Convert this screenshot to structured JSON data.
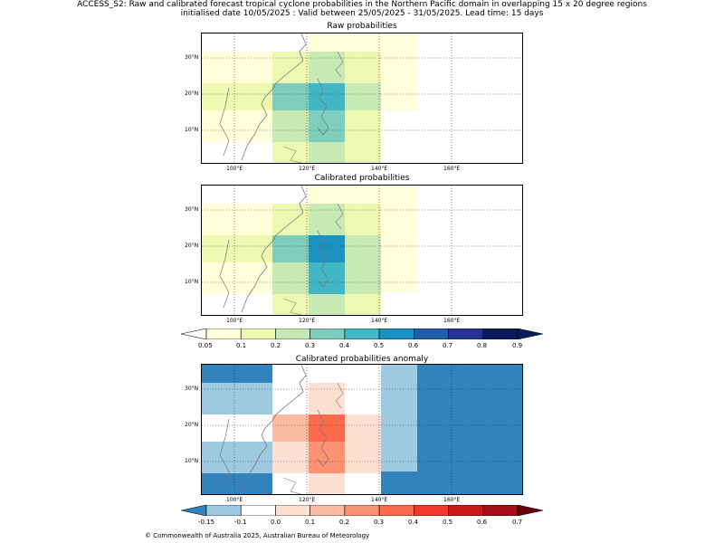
{
  "header": {
    "line1": "ACCESS_S2: Raw and calibrated forecast tropical cyclone probabilities in the Northern Pacific domain in overlapping 15 x 20 degree regions",
    "line2": "initialised date 10/05/2025 :  Valid between 25/05/2025 - 31/05/2025. Lead time: 15 days"
  },
  "panels": [
    {
      "title": "Raw probabilities",
      "id": "raw"
    },
    {
      "title": "Calibrated probabilities",
      "id": "calibrated"
    },
    {
      "title": "Calibrated probabilities anomaly",
      "id": "anomaly"
    }
  ],
  "axes": {
    "lon_labels": [
      "100°E",
      "120°E",
      "140°E",
      "160°E"
    ],
    "lat_labels": [
      "30°N",
      "20°N",
      "10°N"
    ]
  },
  "prob_colorbar": {
    "ticks": [
      "0.05",
      "0.1",
      "0.2",
      "0.3",
      "0.4",
      "0.5",
      "0.6",
      "0.7",
      "0.8",
      "0.9"
    ],
    "colors": [
      "#ffffd9",
      "#edf8b1",
      "#c7e9b4",
      "#7fcdbb",
      "#41b6c4",
      "#1d91c0",
      "#225ea8",
      "#253494",
      "#081d58"
    ]
  },
  "anom_colorbar": {
    "ticks": [
      "-0.15",
      "-0.1",
      "0.0",
      "0.1",
      "0.2",
      "0.3",
      "0.4",
      "0.5",
      "0.6",
      "0.7"
    ],
    "colors": [
      "#9ecae1",
      "#ffffff",
      "#fee0d2",
      "#fcbba1",
      "#fc9272",
      "#fb6a4a",
      "#ef3b2c",
      "#cb181d",
      "#a50f15"
    ]
  },
  "footer": {
    "copyright": "© Commonwealth of Australia 2025, Australian Bureau of Meteorology"
  }
}
